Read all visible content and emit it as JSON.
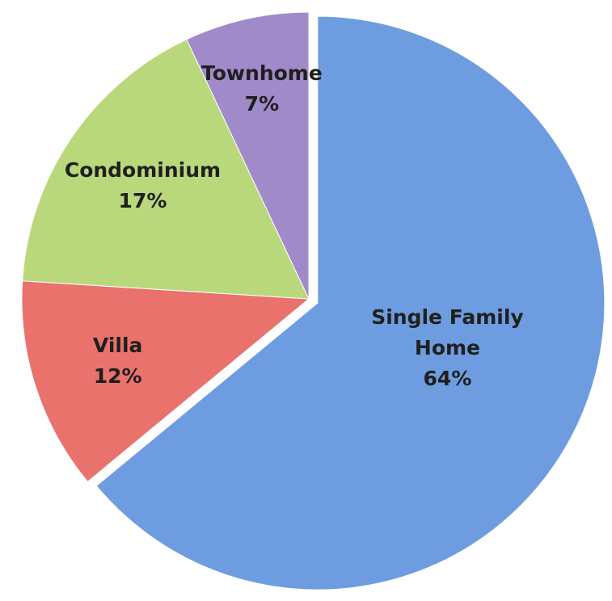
{
  "chart_data": {
    "type": "pie",
    "categories": [
      "Single Family Home",
      "Villa",
      "Condominium",
      "Townhome"
    ],
    "values": [
      64,
      12,
      17,
      7
    ],
    "value_labels": [
      "64%",
      "12%",
      "17%",
      "7%"
    ],
    "colors": [
      "#6d9de0",
      "#e9726d",
      "#b9d87c",
      "#a08ac9"
    ],
    "explode": [
      true,
      false,
      false,
      false
    ]
  }
}
